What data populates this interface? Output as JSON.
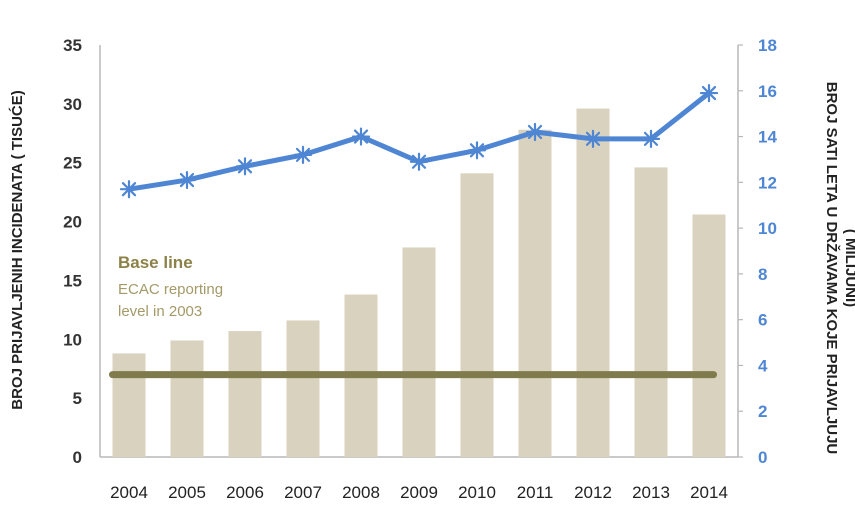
{
  "chart_data": {
    "type": "bar+line",
    "categories": [
      "2004",
      "2005",
      "2006",
      "2007",
      "2008",
      "2009",
      "2010",
      "2011",
      "2012",
      "2013",
      "2014"
    ],
    "series": [
      {
        "axis": "left",
        "kind": "bar",
        "values": [
          8.8,
          9.9,
          10.7,
          11.6,
          13.8,
          17.8,
          24.1,
          27.8,
          29.6,
          24.6,
          20.6
        ]
      },
      {
        "axis": "right",
        "kind": "line",
        "values": [
          11.7,
          12.1,
          12.7,
          13.2,
          14.0,
          12.9,
          13.4,
          14.2,
          13.9,
          13.9,
          15.9
        ]
      }
    ],
    "baseline": {
      "value": 7.0,
      "axis": "left"
    },
    "annotation": {
      "title": "Base line",
      "line1": "ECAC reporting",
      "line2": "level in 2003"
    },
    "ylabel": "BROJ PRIJAVLJENIH INCIDENATA ( TISUĆE)",
    "y2label_line1": "BROJ SATI LETA U DRŽAVAMA KOJE PRIJAVLJUJU",
    "y2label_line2": "( MILIJUNI)",
    "ylim": [
      0,
      35
    ],
    "yticks": [
      0,
      5,
      10,
      15,
      20,
      25,
      30,
      35
    ],
    "y2lim": [
      0,
      18
    ],
    "y2ticks": [
      0,
      2,
      4,
      6,
      8,
      10,
      12,
      14,
      16,
      18
    ],
    "grid": false,
    "colors": {
      "bar": "#d8d2bf",
      "line": "#4f86d4",
      "baseline": "#807b4c",
      "annotation_title": "#8c8148",
      "annotation_sub": "#a39a68",
      "right_ticks": "#4f86d4",
      "axis": "#b8b8b8"
    }
  }
}
